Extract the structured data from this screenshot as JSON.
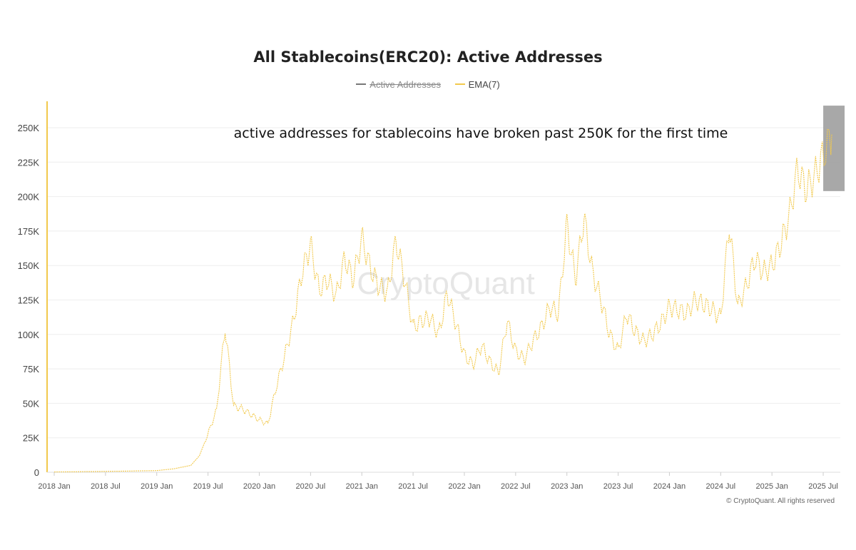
{
  "chart_data": {
    "type": "line",
    "title": "All Stablecoins(ERC20): Active Addresses",
    "xlabel": "",
    "ylabel": "",
    "ylim": [
      0,
      265000
    ],
    "y_ticks": [
      0,
      25000,
      50000,
      75000,
      100000,
      125000,
      150000,
      175000,
      200000,
      225000,
      250000
    ],
    "y_tick_labels": [
      "0",
      "25K",
      "50K",
      "75K",
      "100K",
      "125K",
      "150K",
      "175K",
      "200K",
      "225K",
      "250K"
    ],
    "x_tick_labels": [
      "2018 Jan",
      "2018 Jul",
      "2019 Jan",
      "2019 Jul",
      "2020 Jan",
      "2020 Jul",
      "2021 Jan",
      "2021 Jul",
      "2022 Jan",
      "2022 Jul",
      "2023 Jan",
      "2023 Jul",
      "2024 Jan",
      "2024 Jul",
      "2025 Jan",
      "2025 Jul"
    ],
    "xlim": [
      "2018-01",
      "2025-09"
    ],
    "grid": "horizontal",
    "legend_position": "top-center",
    "series": [
      {
        "name": "Active Addresses",
        "color": "#666666",
        "visible": false,
        "x": [],
        "values": []
      },
      {
        "name": "EMA(7)",
        "color": "#f2c94c",
        "visible": true,
        "x": [
          "2018-01",
          "2018-07",
          "2019-01",
          "2019-03",
          "2019-05",
          "2019-06",
          "2019-07",
          "2019-08",
          "2019-09",
          "2019-10",
          "2019-11",
          "2019-12",
          "2020-01",
          "2020-02",
          "2020-03",
          "2020-04",
          "2020-05",
          "2020-06",
          "2020-07",
          "2020-08",
          "2020-09",
          "2020-10",
          "2020-11",
          "2020-12",
          "2021-01",
          "2021-02",
          "2021-03",
          "2021-04",
          "2021-05",
          "2021-06",
          "2021-07",
          "2021-08",
          "2021-09",
          "2021-10",
          "2021-11",
          "2021-12",
          "2022-01",
          "2022-02",
          "2022-03",
          "2022-04",
          "2022-05",
          "2022-06",
          "2022-07",
          "2022-08",
          "2022-09",
          "2022-10",
          "2022-11",
          "2022-12",
          "2023-01",
          "2023-02",
          "2023-03",
          "2023-04",
          "2023-05",
          "2023-06",
          "2023-07",
          "2023-08",
          "2023-09",
          "2023-10",
          "2023-11",
          "2023-12",
          "2024-01",
          "2024-02",
          "2024-03",
          "2024-04",
          "2024-05",
          "2024-06",
          "2024-07",
          "2024-08",
          "2024-09",
          "2024-10",
          "2024-11",
          "2024-12",
          "2025-01",
          "2025-02",
          "2025-03",
          "2025-04",
          "2025-05",
          "2025-06",
          "2025-07",
          "2025-08"
        ],
        "values": [
          200,
          600,
          1200,
          2500,
          5000,
          12000,
          28000,
          45000,
          105000,
          48000,
          46000,
          42000,
          38000,
          35000,
          62000,
          85000,
          110000,
          145000,
          165000,
          132000,
          140000,
          128000,
          155000,
          140000,
          170000,
          148000,
          135000,
          130000,
          168000,
          140000,
          105000,
          110000,
          112000,
          100000,
          130000,
          108000,
          85000,
          78000,
          92000,
          80000,
          72000,
          110000,
          88000,
          82000,
          95000,
          105000,
          120000,
          115000,
          180000,
          140000,
          185000,
          145000,
          125000,
          100000,
          88000,
          115000,
          102000,
          95000,
          100000,
          108000,
          120000,
          118000,
          115000,
          125000,
          122000,
          118000,
          112000,
          180000,
          120000,
          135000,
          155000,
          145000,
          150000,
          165000,
          185000,
          220000,
          205000,
          215000,
          230000,
          245000
        ]
      }
    ],
    "annotations": [
      {
        "text": "active addresses for stablecoins have broken past 250K for the first time"
      }
    ],
    "highlight_range": {
      "x": [
        "2025-06",
        "2025-09"
      ],
      "y": [
        204000,
        266000
      ],
      "color": "#9e9e9e"
    }
  },
  "watermark": "CryptoQuant",
  "footer": "© CryptoQuant. All rights reserved",
  "colors": {
    "ema_line": "#f2c94c",
    "axis_line": "#f2c94c",
    "highlight_box": "#9e9e9e",
    "grid": "#eeeeee"
  }
}
